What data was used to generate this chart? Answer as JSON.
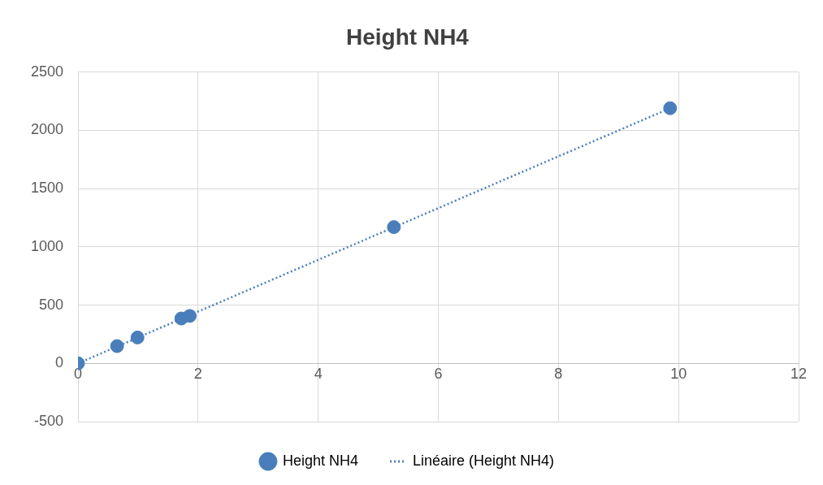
{
  "chart_data": {
    "type": "scatter",
    "title": "Height NH4",
    "series": [
      {
        "name": "Height NH4",
        "type": "scatter",
        "color": "#4a7ebb",
        "marker": "circle",
        "x": [
          0,
          0.65,
          0.99,
          1.72,
          1.86,
          5.26,
          9.86
        ],
        "values": [
          0,
          148,
          222,
          385,
          407,
          1169,
          2189
        ]
      },
      {
        "name": "Linéaire (Height NH4)",
        "type": "line",
        "color": "#4a7ebb",
        "marker": "none",
        "line_style": "dotted",
        "x": [
          0,
          9.86
        ],
        "values": [
          0,
          2189
        ]
      }
    ],
    "xlim": [
      0,
      12
    ],
    "xticks": [
      0,
      2,
      4,
      6,
      8,
      10,
      12
    ],
    "ylim": [
      -500,
      2500
    ],
    "yticks": [
      -500,
      0,
      500,
      1000,
      1500,
      2000,
      2500
    ],
    "grid": true,
    "legend": "bottom"
  }
}
